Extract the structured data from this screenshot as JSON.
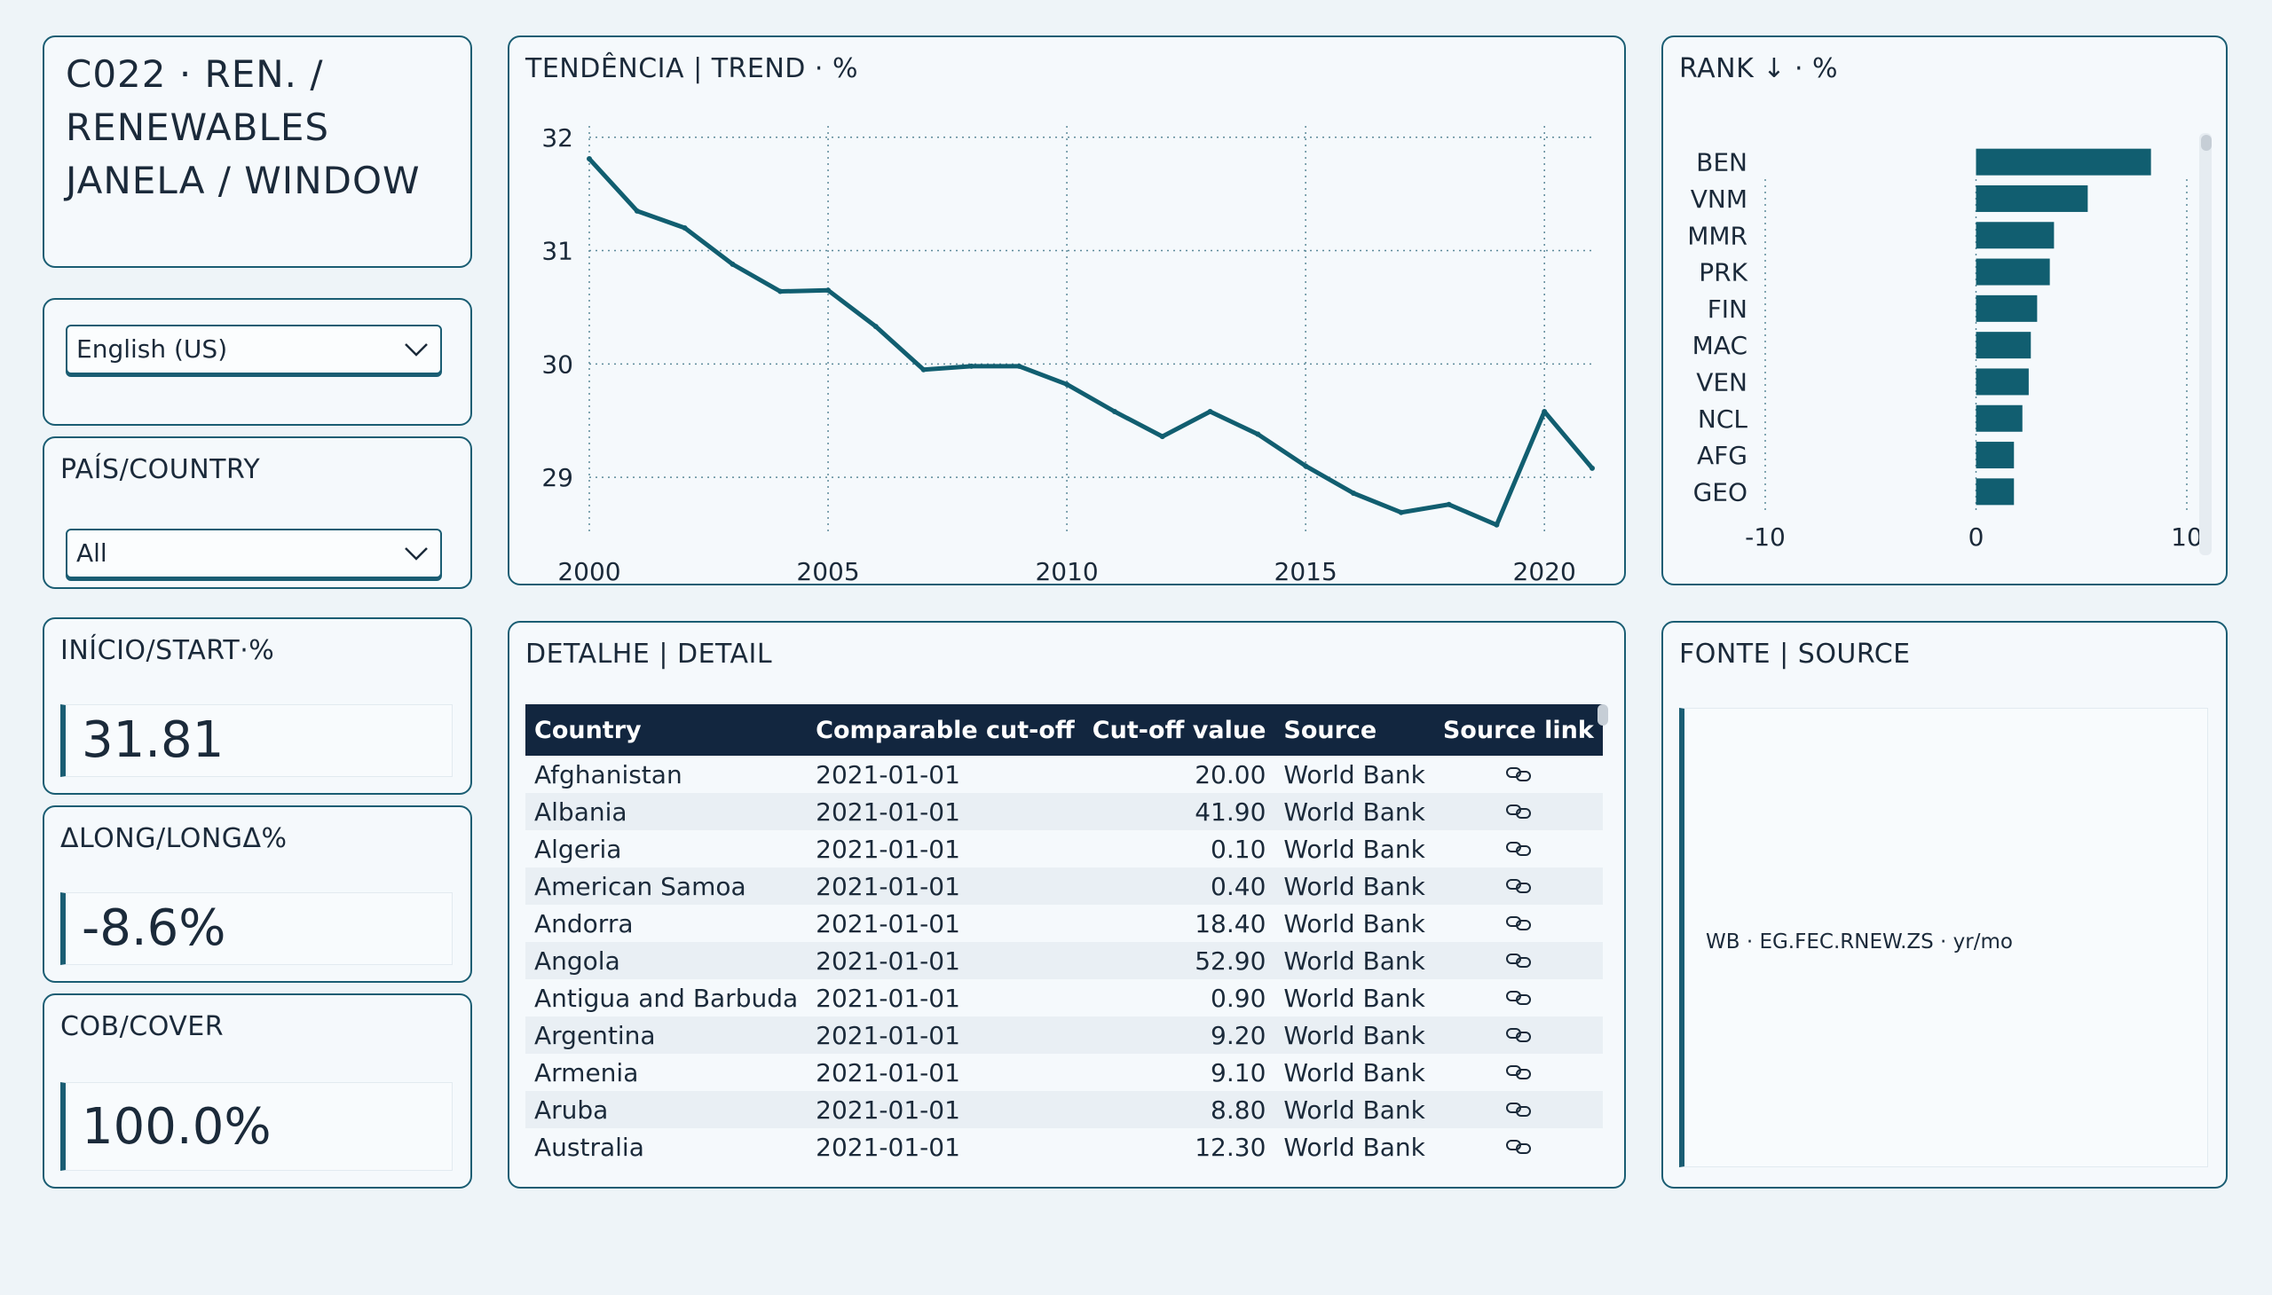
{
  "title": "C022 · REN. / RENEWABLES JANELA / WINDOW",
  "language": {
    "selected": "English (US)"
  },
  "country_filter": {
    "label": "PAÍS/COUNTRY",
    "selected": "All"
  },
  "kpis": {
    "start": {
      "label": "INÍCIO/START·%",
      "value": "31.81"
    },
    "long_delta": {
      "label": "ΔLONG/LONGΔ%",
      "value": "-8.6%"
    },
    "coverage": {
      "label": "COB/COVER",
      "value": "100.0%"
    }
  },
  "trend": {
    "title": "TENDÊNCIA | TREND · %"
  },
  "rank": {
    "title": "RANK ↓ · %"
  },
  "detail": {
    "title": "DETALHE | DETAIL",
    "columns": [
      "Country",
      "Comparable cut-off",
      "Cut-off value",
      "Source",
      "Source link"
    ],
    "rows": [
      [
        "Afghanistan",
        "2021-01-01",
        "20.00",
        "World Bank"
      ],
      [
        "Albania",
        "2021-01-01",
        "41.90",
        "World Bank"
      ],
      [
        "Algeria",
        "2021-01-01",
        "0.10",
        "World Bank"
      ],
      [
        "American Samoa",
        "2021-01-01",
        "0.40",
        "World Bank"
      ],
      [
        "Andorra",
        "2021-01-01",
        "18.40",
        "World Bank"
      ],
      [
        "Angola",
        "2021-01-01",
        "52.90",
        "World Bank"
      ],
      [
        "Antigua and Barbuda",
        "2021-01-01",
        "0.90",
        "World Bank"
      ],
      [
        "Argentina",
        "2021-01-01",
        "9.20",
        "World Bank"
      ],
      [
        "Armenia",
        "2021-01-01",
        "9.10",
        "World Bank"
      ],
      [
        "Aruba",
        "2021-01-01",
        "8.80",
        "World Bank"
      ],
      [
        "Australia",
        "2021-01-01",
        "12.30",
        "World Bank"
      ]
    ],
    "link_icon": "chain-link-icon"
  },
  "source": {
    "title": "FONTE | SOURCE",
    "text": "WB · EG.FEC.RNEW.ZS · yr/mo"
  },
  "colors": {
    "accent": "#1a5d73",
    "bar": "#115e70",
    "header": "#12263f"
  },
  "chart_data": [
    {
      "type": "line",
      "x": [
        2000,
        2001,
        2002,
        2003,
        2004,
        2005,
        2006,
        2007,
        2008,
        2009,
        2010,
        2011,
        2012,
        2013,
        2014,
        2015,
        2016,
        2017,
        2018,
        2019,
        2020,
        2021
      ],
      "series": [
        {
          "values": [
            31.81,
            31.35,
            31.2,
            30.88,
            30.64,
            30.65,
            30.33,
            29.95,
            29.98,
            29.98,
            29.82,
            29.58,
            29.36,
            29.58,
            29.38,
            29.1,
            28.86,
            28.69,
            28.76,
            28.58,
            29.58,
            29.08
          ]
        }
      ],
      "xticks": [
        2000,
        2005,
        2010,
        2015,
        2020
      ],
      "yticks": [
        29,
        30,
        31,
        32
      ],
      "xlim": [
        2000,
        2021
      ],
      "ylim": [
        28.5,
        32.1
      ],
      "grid": true
    },
    {
      "type": "bar",
      "orientation": "horizontal",
      "categories": [
        "BEN",
        "VNM",
        "MMR",
        "PRK",
        "FIN",
        "MAC",
        "VEN",
        "NCL",
        "AFG",
        "GEO"
      ],
      "values": [
        8.3,
        5.3,
        3.7,
        3.5,
        2.9,
        2.6,
        2.5,
        2.2,
        1.8,
        1.8
      ],
      "xticks": [
        -10,
        0,
        10
      ],
      "xlim": [
        -10,
        10
      ]
    }
  ]
}
